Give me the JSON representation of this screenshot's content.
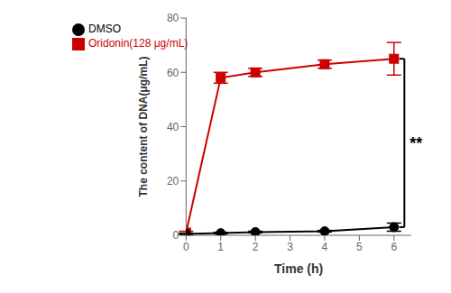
{
  "chart_data": {
    "type": "line",
    "x_label": "Time (h)",
    "y_label": "The content of DNA(μg/mL)",
    "x": [
      0,
      1,
      2,
      4,
      6
    ],
    "series": [
      {
        "name": "Oridonin(128 μg/mL)",
        "color": "#cc0000",
        "marker": "square",
        "values": [
          1.0,
          58.0,
          60.0,
          63.0,
          65.0
        ],
        "errors": [
          0.5,
          2.0,
          1.5,
          1.5,
          6.0
        ]
      },
      {
        "name": "DMSO",
        "color": "#000000",
        "marker": "circle",
        "values": [
          0.5,
          0.8,
          1.2,
          1.5,
          3.0
        ],
        "errors": [
          0.3,
          0.3,
          0.3,
          0.3,
          1.5
        ]
      }
    ],
    "xlim": [
      0,
      6.5
    ],
    "ylim": [
      0,
      80
    ],
    "xticks": [
      0,
      1,
      2,
      3,
      4,
      5,
      6
    ],
    "yticks": [
      0,
      20,
      40,
      60,
      80
    ],
    "legend": "upper left",
    "grid": false,
    "annotations": [
      "**"
    ]
  }
}
